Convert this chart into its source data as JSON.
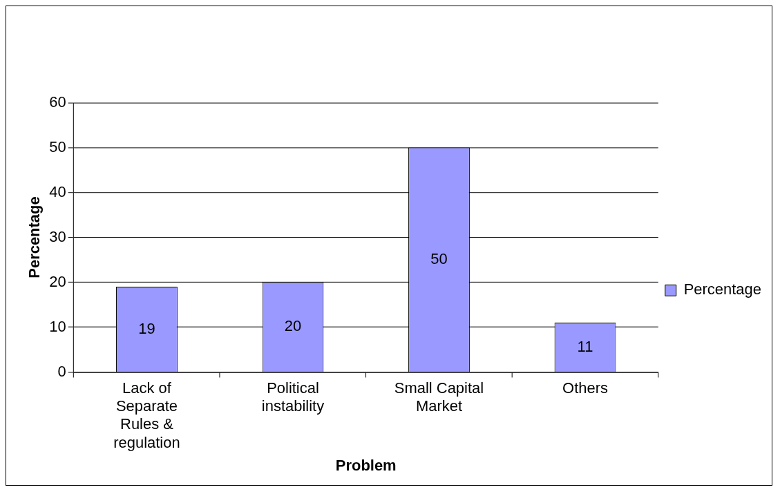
{
  "chart_data": {
    "type": "bar",
    "xlabel": "Problem",
    "ylabel": "Percentage",
    "categories": [
      "Lack of Separate Rules & regulation",
      "Political instability",
      "Small Capital Market",
      "Others"
    ],
    "series": [
      {
        "name": "Percentage",
        "color": "#9999ff",
        "values": [
          19,
          20,
          50,
          11
        ]
      }
    ],
    "ylim": [
      0,
      60
    ],
    "yticks": [
      0,
      10,
      20,
      30,
      40,
      50,
      60
    ],
    "grid": "y",
    "legend": "right",
    "data_labels": true
  }
}
